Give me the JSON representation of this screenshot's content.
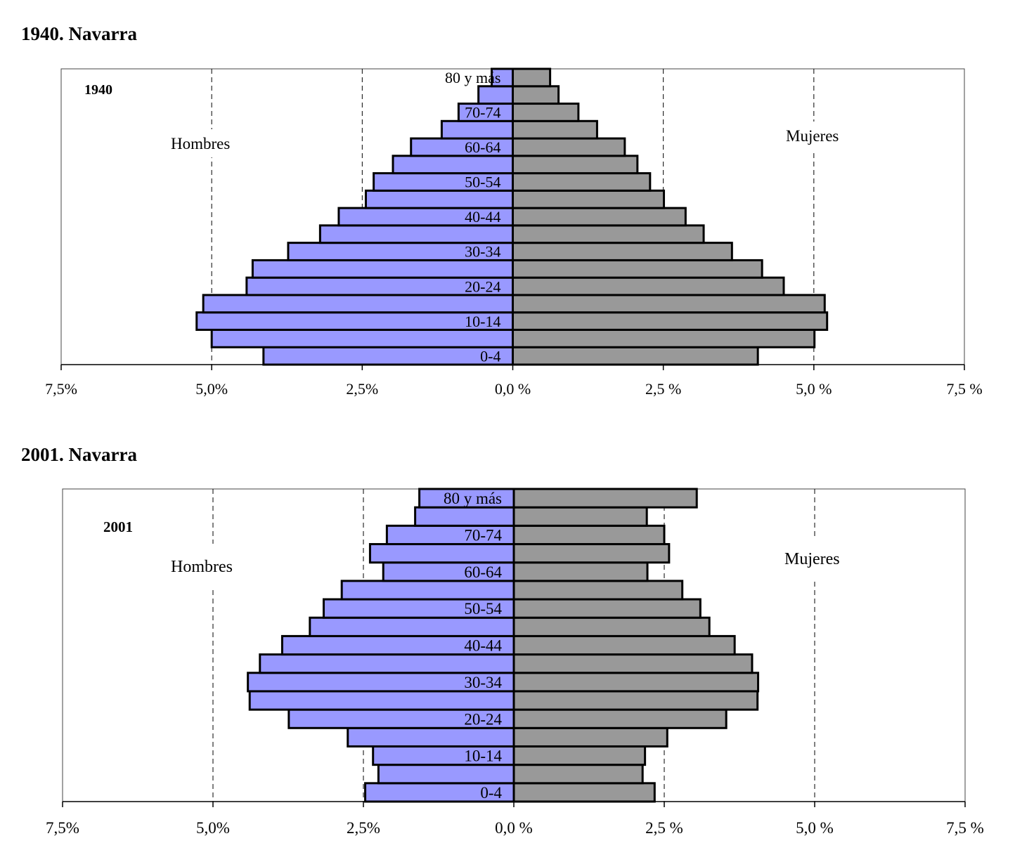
{
  "chart_data": [
    {
      "type": "bar",
      "title": "1940. Navarra",
      "inner_label": "1940",
      "categories": [
        "0-4",
        "",
        "10-14",
        "",
        "20-24",
        "",
        "30-34",
        "",
        "40-44",
        "",
        "50-54",
        "",
        "60-64",
        "",
        "70-74",
        "",
        "80 y más"
      ],
      "series": [
        {
          "name": "Hombres",
          "color": "#9999FF",
          "values": [
            4.14,
            5.0,
            5.25,
            5.14,
            4.42,
            4.32,
            3.73,
            3.2,
            2.89,
            2.44,
            2.31,
            1.99,
            1.69,
            1.18,
            0.9,
            0.57,
            0.35
          ]
        },
        {
          "name": "Mujeres",
          "color": "#999999",
          "values": [
            4.07,
            5.01,
            5.22,
            5.18,
            4.5,
            4.14,
            3.64,
            3.17,
            2.87,
            2.51,
            2.28,
            2.07,
            1.86,
            1.4,
            1.09,
            0.76,
            0.62
          ]
        }
      ],
      "xlim": [
        -7.5,
        7.5
      ],
      "ticks": [
        -7.5,
        -5,
        -2.5,
        0,
        2.5,
        5,
        7.5
      ],
      "tick_labels": [
        "7,5%",
        "5,0%",
        "2,5%",
        "0,0 %",
        "2,5 %",
        "5,0 %",
        "7,5 %"
      ],
      "gridlines": [
        -5,
        -2.5,
        2.5,
        5
      ],
      "grid": true
    },
    {
      "type": "bar",
      "title": "2001. Navarra",
      "inner_label": "2001",
      "categories": [
        "0-4",
        "",
        "10-14",
        "",
        "20-24",
        "",
        "30-34",
        "",
        "40-44",
        "",
        "50-54",
        "",
        "60-64",
        "",
        "70-74",
        "",
        "80 y más"
      ],
      "series": [
        {
          "name": "Hombres",
          "color": "#9999FF",
          "values": [
            2.47,
            2.25,
            2.34,
            2.76,
            3.74,
            4.39,
            4.42,
            4.22,
            3.85,
            3.39,
            3.16,
            2.86,
            2.17,
            2.39,
            2.11,
            1.64,
            1.57
          ]
        },
        {
          "name": "Mujeres",
          "color": "#999999",
          "values": [
            2.34,
            2.14,
            2.18,
            2.55,
            3.53,
            4.05,
            4.06,
            3.96,
            3.67,
            3.25,
            3.1,
            2.8,
            2.22,
            2.58,
            2.5,
            2.21,
            3.04
          ]
        }
      ],
      "xlim": [
        -7.5,
        7.5
      ],
      "ticks": [
        -7.5,
        -5,
        -2.5,
        0,
        2.5,
        5,
        7.5
      ],
      "tick_labels": [
        "7,5%",
        "5,0%",
        "2,5%",
        "0,0 %",
        "2,5 %",
        "5,0 %",
        "7,5 %"
      ],
      "gridlines": [
        -5,
        -2.5,
        2.5,
        5
      ],
      "grid": true
    }
  ]
}
